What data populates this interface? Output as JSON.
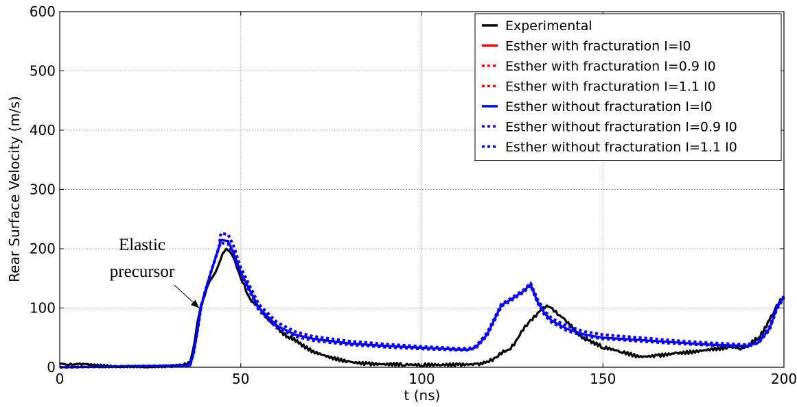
{
  "chart_data": {
    "type": "line",
    "title": "",
    "xlabel": "t (ns)",
    "ylabel": "Rear Surface Velocity (m/s)",
    "xlim": [
      0,
      200
    ],
    "ylim": [
      0,
      600
    ],
    "xticks": [
      0,
      50,
      100,
      150,
      200
    ],
    "yticks": [
      0,
      100,
      200,
      300,
      400,
      500,
      600
    ],
    "xtick_labels": [
      "0",
      "50",
      "100",
      "150",
      "200"
    ],
    "ytick_labels": [
      "0",
      "100",
      "200",
      "300",
      "400",
      "500",
      "600"
    ],
    "grid": true,
    "legend_position": "top-right",
    "annotation": {
      "lines": [
        "Elastic",
        "precursor"
      ],
      "target": [
        38.5,
        100
      ],
      "arrow": true
    },
    "series": [
      {
        "name": "Experimental",
        "color": "#000000",
        "style": "solid",
        "x": [
          0,
          3,
          6,
          10,
          15,
          20,
          25,
          30,
          34,
          36,
          37,
          38,
          39,
          40,
          41,
          42,
          43,
          44,
          45,
          46,
          47,
          48,
          50,
          52,
          54,
          56,
          58,
          60,
          63,
          66,
          70,
          75,
          80,
          85,
          90,
          95,
          100,
          105,
          110,
          115,
          118,
          120,
          122,
          124,
          126,
          128,
          130,
          132,
          134,
          135,
          136,
          138,
          140,
          143,
          146,
          150,
          155,
          160,
          165,
          170,
          175,
          180,
          185,
          188,
          190,
          193,
          196,
          198,
          200
        ],
        "values": [
          5,
          6,
          4,
          3,
          2,
          2,
          1,
          2,
          3,
          8,
          35,
          75,
          105,
          120,
          140,
          150,
          160,
          175,
          192,
          200,
          195,
          185,
          150,
          122,
          105,
          92,
          80,
          68,
          52,
          40,
          28,
          18,
          10,
          6,
          4,
          3,
          2,
          3,
          4,
          6,
          10,
          16,
          22,
          30,
          45,
          62,
          80,
          92,
          100,
          102,
          100,
          88,
          75,
          58,
          45,
          32,
          25,
          17,
          20,
          25,
          28,
          32,
          34,
          30,
          34,
          50,
          80,
          105,
          118
        ]
      },
      {
        "name": "Esther with fracturation I=I0",
        "color": "#ff0000",
        "style": "solid",
        "x": [
          0,
          36,
          37,
          38,
          39,
          40,
          42,
          44,
          44.5,
          46.5,
          48,
          50,
          55,
          60,
          65,
          70,
          80,
          90,
          100,
          110,
          113,
          115,
          118,
          120,
          122,
          124,
          126,
          128,
          129,
          130,
          132,
          134,
          136,
          140,
          145,
          150,
          160,
          170,
          180,
          190,
          193,
          196,
          198,
          200
        ],
        "values": [
          0,
          3,
          25,
          60,
          100,
          125,
          165,
          203,
          215,
          213,
          193,
          160,
          100,
          70,
          55,
          48,
          40,
          36,
          33,
          30,
          30,
          34,
          55,
          80,
          105,
          112,
          120,
          128,
          134,
          140,
          110,
          90,
          78,
          65,
          55,
          50,
          46,
          42,
          38,
          36,
          42,
          65,
          100,
          118
        ]
      },
      {
        "name": "Esther with fracturation I=0.9 I0",
        "color": "#ff0000",
        "style": "dotted",
        "x": [
          0,
          36,
          37,
          38,
          39,
          40,
          42,
          44,
          44.5,
          46.5,
          48,
          50,
          55,
          60,
          65,
          70,
          80,
          90,
          100,
          110,
          113,
          115,
          118,
          120,
          122,
          124,
          126,
          128,
          129,
          130,
          132,
          134,
          136,
          140,
          145,
          150,
          160,
          170,
          180,
          190,
          193,
          196,
          198,
          200
        ],
        "values": [
          0,
          3,
          25,
          60,
          100,
          125,
          165,
          203,
          210,
          208,
          190,
          158,
          96,
          66,
          52,
          45,
          38,
          34,
          31,
          29,
          29,
          33,
          53,
          78,
          103,
          110,
          118,
          126,
          132,
          138,
          108,
          87,
          75,
          62,
          52,
          48,
          44,
          40,
          37,
          35,
          41,
          63,
          98,
          117
        ]
      },
      {
        "name": "Esther with fracturation I=1.1 I0",
        "color": "#ff0000",
        "style": "dotted",
        "x": [
          0,
          36,
          37,
          38,
          39,
          40,
          42,
          44,
          44.5,
          46.5,
          48,
          50,
          55,
          60,
          65,
          70,
          80,
          90,
          100,
          110,
          113,
          115,
          118,
          120,
          122,
          124,
          126,
          128,
          129,
          130,
          132,
          134,
          136,
          140,
          145,
          150,
          160,
          170,
          180,
          190,
          193,
          196,
          198,
          200
        ],
        "values": [
          0,
          3,
          25,
          60,
          100,
          125,
          165,
          203,
          226,
          224,
          205,
          168,
          106,
          76,
          60,
          52,
          44,
          39,
          35,
          32,
          32,
          36,
          58,
          82,
          107,
          114,
          122,
          130,
          136,
          142,
          114,
          94,
          82,
          70,
          60,
          55,
          50,
          45,
          41,
          38,
          44,
          68,
          102,
          120
        ]
      },
      {
        "name": "Esther without fracturation I=I0",
        "color": "#0000ff",
        "style": "solid",
        "x": [
          0,
          36,
          37,
          38,
          39,
          40,
          42,
          44,
          44.5,
          46.5,
          48,
          50,
          55,
          60,
          65,
          70,
          80,
          90,
          100,
          110,
          113,
          115,
          118,
          120,
          122,
          124,
          126,
          128,
          129,
          130,
          132,
          134,
          136,
          140,
          145,
          150,
          160,
          170,
          180,
          190,
          193,
          196,
          198,
          200
        ],
        "values": [
          0,
          3,
          25,
          60,
          100,
          125,
          165,
          203,
          215,
          213,
          193,
          160,
          100,
          70,
          55,
          48,
          40,
          36,
          33,
          30,
          30,
          34,
          55,
          80,
          105,
          112,
          120,
          128,
          134,
          140,
          110,
          90,
          78,
          65,
          55,
          50,
          46,
          42,
          38,
          36,
          42,
          65,
          100,
          118
        ]
      },
      {
        "name": "Esther without fracturation I=0.9 I0",
        "color": "#0000ff",
        "style": "dotted",
        "x": [
          0,
          36,
          37,
          38,
          39,
          40,
          42,
          44,
          44.5,
          46.5,
          48,
          50,
          55,
          60,
          65,
          70,
          80,
          90,
          100,
          110,
          113,
          115,
          118,
          120,
          122,
          124,
          126,
          128,
          129,
          130,
          132,
          134,
          136,
          140,
          145,
          150,
          160,
          170,
          180,
          190,
          193,
          196,
          198,
          200
        ],
        "values": [
          0,
          3,
          25,
          60,
          100,
          125,
          165,
          203,
          210,
          208,
          190,
          158,
          96,
          66,
          52,
          45,
          38,
          34,
          31,
          29,
          29,
          33,
          53,
          78,
          103,
          110,
          118,
          126,
          132,
          138,
          108,
          87,
          75,
          62,
          52,
          48,
          44,
          40,
          37,
          35,
          41,
          63,
          98,
          117
        ]
      },
      {
        "name": "Esther without fracturation I=1.1 I0",
        "color": "#0000ff",
        "style": "dotted",
        "x": [
          0,
          36,
          37,
          38,
          39,
          40,
          42,
          44,
          44.5,
          46.5,
          48,
          50,
          55,
          60,
          65,
          70,
          80,
          90,
          100,
          110,
          113,
          115,
          118,
          120,
          122,
          124,
          126,
          128,
          129,
          130,
          132,
          134,
          136,
          140,
          145,
          150,
          160,
          170,
          180,
          190,
          193,
          196,
          198,
          200
        ],
        "values": [
          0,
          3,
          25,
          60,
          100,
          125,
          165,
          203,
          226,
          224,
          205,
          168,
          106,
          76,
          60,
          52,
          44,
          39,
          35,
          32,
          32,
          36,
          58,
          82,
          107,
          114,
          122,
          130,
          136,
          142,
          114,
          94,
          82,
          70,
          60,
          55,
          50,
          45,
          41,
          38,
          44,
          68,
          102,
          120
        ]
      }
    ]
  }
}
